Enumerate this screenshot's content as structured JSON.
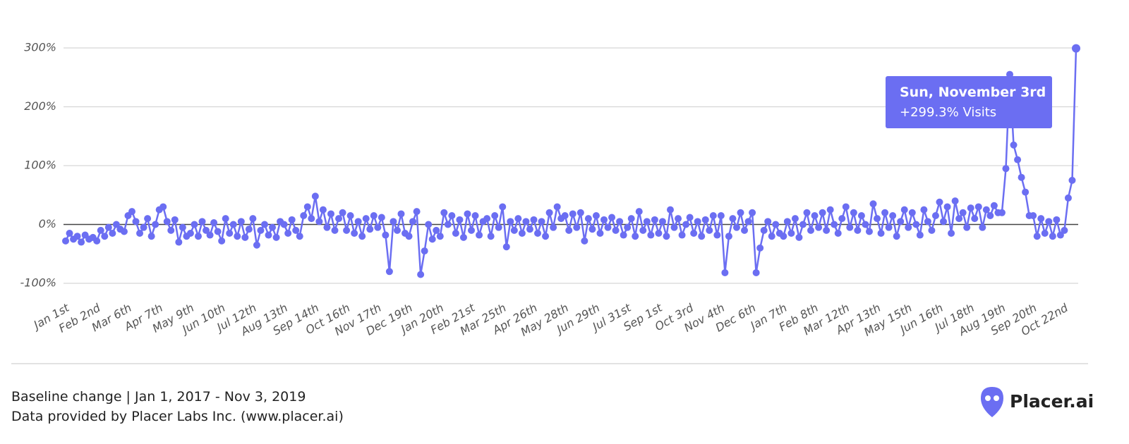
{
  "chart_data": {
    "type": "line",
    "color": "#6b6ef2",
    "ylim": [
      -100,
      300
    ],
    "yticks": [
      {
        "value": -100,
        "label": "-100%"
      },
      {
        "value": 0,
        "label": "0%"
      },
      {
        "value": 100,
        "label": "100%"
      },
      {
        "value": 200,
        "label": "200%"
      },
      {
        "value": 300,
        "label": "300%"
      }
    ],
    "grid": true,
    "categories": [
      "Jan 1st",
      null,
      null,
      null,
      null,
      null,
      null,
      null,
      "Feb 2nd",
      null,
      null,
      null,
      null,
      null,
      null,
      null,
      "Mar 6th",
      null,
      null,
      null,
      null,
      null,
      null,
      null,
      "Apr 7th",
      null,
      null,
      null,
      null,
      null,
      null,
      null,
      "May 9th",
      null,
      null,
      null,
      null,
      null,
      null,
      null,
      "Jun 10th",
      null,
      null,
      null,
      null,
      null,
      null,
      null,
      "Jul 12th",
      null,
      null,
      null,
      null,
      null,
      null,
      null,
      "Aug 13th",
      null,
      null,
      null,
      null,
      null,
      null,
      null,
      "Sep 14th",
      null,
      null,
      null,
      null,
      null,
      null,
      null,
      "Oct 16th",
      null,
      null,
      null,
      null,
      null,
      null,
      null,
      "Nov 17th",
      null,
      null,
      null,
      null,
      null,
      null,
      null,
      "Dec 19th",
      null,
      null,
      null,
      null,
      null,
      null,
      null,
      "Jan 20th",
      null,
      null,
      null,
      null,
      null,
      null,
      null,
      "Feb 21st",
      null,
      null,
      null,
      null,
      null,
      null,
      null,
      "Mar 25th",
      null,
      null,
      null,
      null,
      null,
      null,
      null,
      "Apr 26th",
      null,
      null,
      null,
      null,
      null,
      null,
      null,
      "May 28th",
      null,
      null,
      null,
      null,
      null,
      null,
      null,
      "Jun 29th",
      null,
      null,
      null,
      null,
      null,
      null,
      null,
      "Jul 31st",
      null,
      null,
      null,
      null,
      null,
      null,
      null,
      "Sep 1st",
      null,
      null,
      null,
      null,
      null,
      null,
      null,
      "Oct 3rd",
      null,
      null,
      null,
      null,
      null,
      null,
      null,
      "Nov 4th",
      null,
      null,
      null,
      null,
      null,
      null,
      null,
      "Dec 6th",
      null,
      null,
      null,
      null,
      null,
      null,
      null,
      "Jan 7th",
      null,
      null,
      null,
      null,
      null,
      null,
      null,
      "Feb 8th",
      null,
      null,
      null,
      null,
      null,
      null,
      null,
      "Mar 12th",
      null,
      null,
      null,
      null,
      null,
      null,
      null,
      "Apr 13th",
      null,
      null,
      null,
      null,
      null,
      null,
      null,
      "May 15th",
      null,
      null,
      null,
      null,
      null,
      null,
      null,
      "Jun 16th",
      null,
      null,
      null,
      null,
      null,
      null,
      null,
      "Jul 18th",
      null,
      null,
      null,
      null,
      null,
      null,
      null,
      "Aug 19th",
      null,
      null,
      null,
      null,
      null,
      null,
      null,
      "Sep 20th",
      null,
      null,
      null,
      null,
      null,
      null,
      null,
      "Oct 22nd",
      null,
      null,
      null
    ],
    "values": [
      -28,
      -15,
      -25,
      -20,
      -30,
      -18,
      -25,
      -22,
      -28,
      -10,
      -20,
      -5,
      -15,
      0,
      -8,
      -12,
      15,
      22,
      5,
      -15,
      -5,
      10,
      -20,
      0,
      25,
      30,
      5,
      -10,
      8,
      -30,
      -5,
      -20,
      -15,
      0,
      -20,
      5,
      -10,
      -18,
      3,
      -12,
      -28,
      10,
      -15,
      0,
      -20,
      5,
      -22,
      -8,
      10,
      -35,
      -10,
      0,
      -18,
      -5,
      -22,
      5,
      0,
      -15,
      8,
      -10,
      -20,
      15,
      30,
      10,
      48,
      5,
      25,
      -5,
      18,
      -10,
      10,
      20,
      -10,
      15,
      -15,
      5,
      -20,
      10,
      -8,
      15,
      -5,
      12,
      -18,
      -80,
      5,
      -10,
      18,
      -15,
      -20,
      5,
      22,
      -85,
      -45,
      0,
      -25,
      -10,
      -20,
      20,
      0,
      15,
      -15,
      8,
      -22,
      18,
      -10,
      15,
      -18,
      5,
      10,
      -20,
      15,
      -5,
      30,
      -38,
      5,
      -10,
      10,
      -15,
      5,
      -8,
      8,
      -15,
      5,
      -20,
      20,
      -5,
      30,
      10,
      15,
      -10,
      18,
      -5,
      20,
      -28,
      10,
      -8,
      15,
      -15,
      8,
      -5,
      12,
      -10,
      5,
      -18,
      -5,
      10,
      -20,
      22,
      -10,
      5,
      -18,
      8,
      -15,
      5,
      -20,
      25,
      -5,
      10,
      -18,
      0,
      12,
      -15,
      5,
      -20,
      8,
      -10,
      15,
      -18,
      15,
      -82,
      -20,
      10,
      -5,
      20,
      -10,
      5,
      20,
      -82,
      -40,
      -10,
      5,
      -20,
      0,
      -15,
      -20,
      5,
      -15,
      10,
      -22,
      0,
      20,
      -10,
      15,
      -5,
      20,
      -10,
      25,
      0,
      -15,
      10,
      30,
      -5,
      20,
      -10,
      15,
      0,
      -12,
      35,
      10,
      -15,
      20,
      -5,
      15,
      -20,
      5,
      25,
      -5,
      20,
      0,
      -18,
      25,
      5,
      -10,
      15,
      38,
      5,
      30,
      -15,
      40,
      10,
      20,
      -5,
      28,
      10,
      30,
      -5,
      25,
      15,
      32,
      20,
      20,
      95,
      255,
      135,
      110,
      80,
      55,
      15,
      15,
      -20,
      10,
      -15,
      5,
      -20,
      8,
      -18,
      -10,
      45,
      75,
      299.3
    ],
    "tooltip": {
      "title": "Sun, November 3rd",
      "label": "+299.3% Visits"
    },
    "footer": {
      "caption": "Baseline change | Jan 1, 2017 - Nov 3, 2019",
      "source": "Data provided by Placer Labs Inc. (www.placer.ai)",
      "brand": "Placer.ai"
    }
  }
}
